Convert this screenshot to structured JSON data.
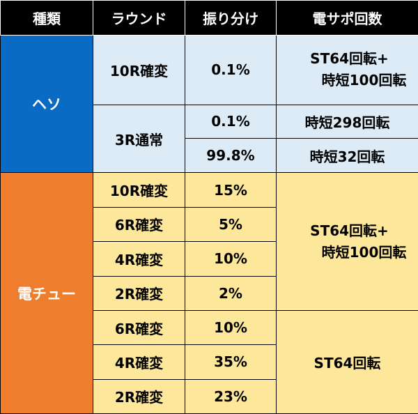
{
  "header": {
    "col1": "種類",
    "col2": "ラウンド",
    "col3": "振り分け",
    "col4": "電サポ回数"
  },
  "heso": {
    "label": "ヘソ",
    "rows": [
      {
        "round": "10R確変",
        "share": "0.1%",
        "support_line1": "ST64回転+",
        "support_line2": "時短100回転"
      },
      {
        "round": "3R通常",
        "share": "0.1%",
        "support": "時短298回転"
      },
      {
        "share": "99.8%",
        "support": "時短32回転"
      }
    ]
  },
  "denchu": {
    "label": "電チュー",
    "rows": [
      {
        "round": "10R確変",
        "share": "15%"
      },
      {
        "round": "6R確変",
        "share": "5%"
      },
      {
        "round": "4R確変",
        "share": "10%"
      },
      {
        "round": "2R確変",
        "share": "2%"
      },
      {
        "round": "6R確変",
        "share": "10%"
      },
      {
        "round": "4R確変",
        "share": "35%"
      },
      {
        "round": "2R確変",
        "share": "23%"
      }
    ],
    "support_group1_line1": "ST64回転+",
    "support_group1_line2": "時短100回転",
    "support_group2": "ST64回転"
  },
  "colors": {
    "header_bg": "#000000",
    "heso_side": "#0a6bc4",
    "heso_cell": "#ddebf7",
    "denchu_side": "#ee7e2e",
    "denchu_cell": "#fde79b"
  }
}
